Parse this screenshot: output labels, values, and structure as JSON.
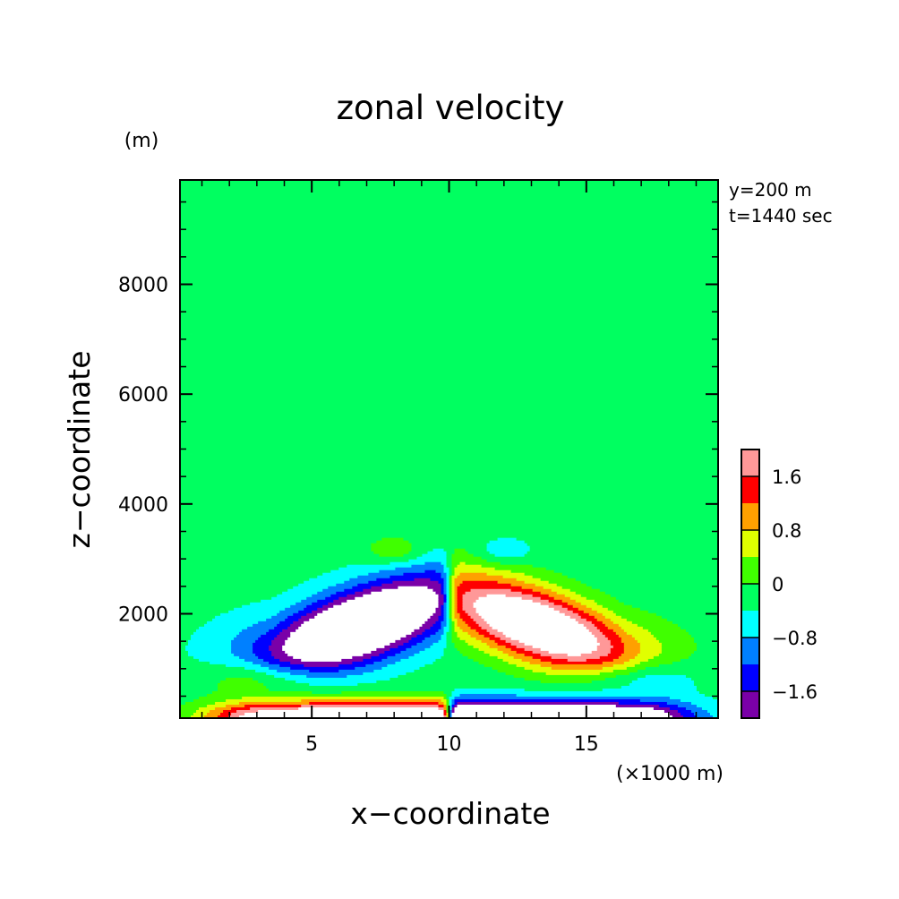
{
  "chart_data": {
    "type": "heatmap",
    "subtype": "filled-contour",
    "title": "zonal velocity",
    "xlabel": "x−coordinate",
    "ylabel": "z−coordinate",
    "x_unit": "(×1000 m)",
    "y_unit": "(m)",
    "xlim": [
      0.2,
      19.8
    ],
    "ylim": [
      100,
      9900
    ],
    "xticks": [
      5,
      10,
      15
    ],
    "xtick_labels": [
      "5",
      "10",
      "15"
    ],
    "yticks": [
      2000,
      4000,
      6000,
      8000
    ],
    "ytick_labels": [
      "2000",
      "4000",
      "6000",
      "8000"
    ],
    "annotations": [
      "y=200 m",
      "t=1440 sec"
    ],
    "colorbar": {
      "levels": [
        -2.0,
        -1.6,
        -1.2,
        -0.8,
        -0.4,
        0,
        0.4,
        0.8,
        1.2,
        1.6,
        2.0
      ],
      "tick_values": [
        -1.6,
        -0.8,
        0,
        0.8,
        1.6
      ],
      "tick_labels": [
        "−1.6",
        "−0.8",
        "0",
        "0.8",
        "1.6"
      ],
      "colors": [
        "#7a00a8",
        "#0000ff",
        "#0080ff",
        "#00ffff",
        "#00ff60",
        "#40ff00",
        "#e0ff00",
        "#ffa000",
        "#ff0000",
        "#ff9898"
      ],
      "below_color": "#ffffff",
      "above_color": "#ffffff"
    }
  }
}
